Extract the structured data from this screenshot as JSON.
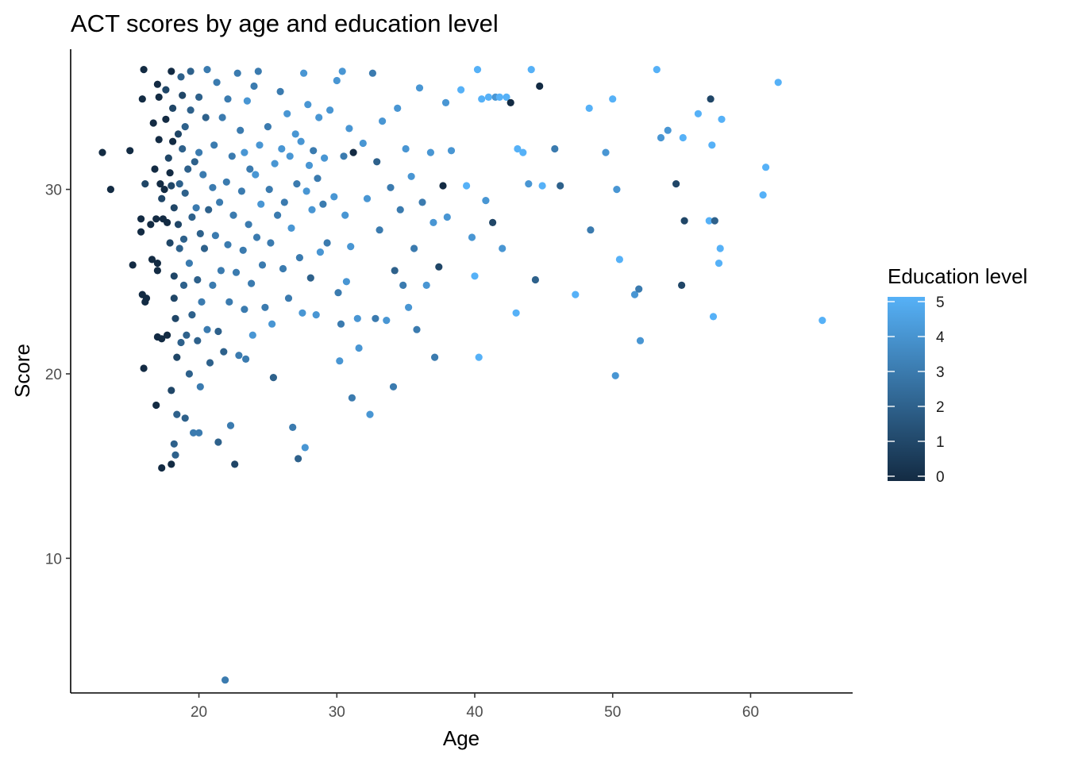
{
  "chart_data": {
    "type": "scatter",
    "title": "ACT scores by age and education level",
    "xlabel": "Age",
    "ylabel": "Score",
    "xlim": [
      10.7,
      67.4
    ],
    "ylim": [
      2.7,
      37.6
    ],
    "x_ticks": [
      20,
      30,
      40,
      50,
      60
    ],
    "y_ticks": [
      10,
      20,
      30
    ],
    "grid": false,
    "legend": {
      "title": "Education level",
      "position": "right",
      "type": "colorbar",
      "ticks": [
        0,
        1,
        2,
        3,
        4,
        5
      ],
      "low_color": "#132B43",
      "high_color": "#56B1F7"
    },
    "points": [
      [
        13.0,
        32.0,
        0
      ],
      [
        13.6,
        30.0,
        0
      ],
      [
        15.0,
        32.1,
        0
      ],
      [
        15.2,
        25.9,
        0
      ],
      [
        15.8,
        28.4,
        0
      ],
      [
        15.8,
        27.7,
        0
      ],
      [
        15.9,
        24.3,
        0
      ],
      [
        16.0,
        36.5,
        0
      ],
      [
        15.9,
        34.9,
        0
      ],
      [
        16.1,
        30.3,
        1
      ],
      [
        16.0,
        20.3,
        0
      ],
      [
        16.1,
        23.9,
        0
      ],
      [
        16.2,
        24.1,
        0
      ],
      [
        16.5,
        28.1,
        0
      ],
      [
        16.6,
        26.2,
        0
      ],
      [
        16.7,
        33.6,
        0
      ],
      [
        16.8,
        31.1,
        0
      ],
      [
        16.9,
        28.4,
        0
      ],
      [
        16.9,
        18.3,
        0
      ],
      [
        17.0,
        22.0,
        0
      ],
      [
        17.0,
        25.6,
        0
      ],
      [
        17.0,
        26.0,
        0
      ],
      [
        17.0,
        35.7,
        0
      ],
      [
        17.1,
        35.0,
        0
      ],
      [
        17.1,
        32.7,
        0
      ],
      [
        17.2,
        30.3,
        0
      ],
      [
        17.3,
        29.5,
        1
      ],
      [
        17.3,
        21.9,
        0
      ],
      [
        17.3,
        14.9,
        0
      ],
      [
        17.4,
        28.4,
        0
      ],
      [
        17.5,
        30.0,
        0
      ],
      [
        17.6,
        33.8,
        0
      ],
      [
        17.6,
        35.4,
        1
      ],
      [
        17.7,
        28.2,
        0
      ],
      [
        17.7,
        22.1,
        0
      ],
      [
        17.8,
        31.7,
        1
      ],
      [
        17.9,
        27.1,
        1
      ],
      [
        17.9,
        30.9,
        0
      ],
      [
        18.0,
        30.2,
        1
      ],
      [
        18.0,
        19.1,
        1
      ],
      [
        18.0,
        15.1,
        0
      ],
      [
        18.0,
        36.4,
        0
      ],
      [
        18.1,
        34.4,
        1
      ],
      [
        18.1,
        32.6,
        0
      ],
      [
        18.2,
        29.0,
        1
      ],
      [
        18.2,
        25.3,
        1
      ],
      [
        18.2,
        24.1,
        1
      ],
      [
        18.3,
        23.0,
        1
      ],
      [
        18.2,
        16.2,
        2
      ],
      [
        18.3,
        15.6,
        2
      ],
      [
        18.4,
        17.8,
        2
      ],
      [
        18.4,
        20.9,
        1
      ],
      [
        18.5,
        33.0,
        1
      ],
      [
        18.5,
        28.1,
        1
      ],
      [
        18.6,
        30.3,
        2
      ],
      [
        18.6,
        26.8,
        2
      ],
      [
        18.7,
        36.1,
        2
      ],
      [
        18.7,
        21.7,
        2
      ],
      [
        18.8,
        35.1,
        1
      ],
      [
        18.8,
        32.2,
        2
      ],
      [
        18.9,
        24.8,
        2
      ],
      [
        18.9,
        27.3,
        2
      ],
      [
        19.0,
        29.8,
        2
      ],
      [
        19.0,
        33.4,
        2
      ],
      [
        19.0,
        17.6,
        2
      ],
      [
        19.1,
        22.1,
        2
      ],
      [
        19.2,
        31.1,
        2
      ],
      [
        19.3,
        26.0,
        3
      ],
      [
        19.3,
        20.0,
        2
      ],
      [
        19.4,
        36.4,
        2
      ],
      [
        19.4,
        34.3,
        2
      ],
      [
        19.5,
        28.5,
        2
      ],
      [
        19.5,
        23.2,
        2
      ],
      [
        19.6,
        16.8,
        3
      ],
      [
        19.7,
        31.5,
        2
      ],
      [
        19.8,
        29.0,
        3
      ],
      [
        19.9,
        25.1,
        2
      ],
      [
        19.9,
        21.8,
        2
      ],
      [
        20.0,
        35.0,
        2
      ],
      [
        20.0,
        32.0,
        3
      ],
      [
        20.0,
        16.8,
        3
      ],
      [
        20.1,
        27.6,
        2
      ],
      [
        20.1,
        19.3,
        3
      ],
      [
        20.2,
        23.9,
        3
      ],
      [
        20.3,
        30.8,
        3
      ],
      [
        20.4,
        26.8,
        2
      ],
      [
        20.5,
        33.9,
        2
      ],
      [
        20.6,
        22.4,
        3
      ],
      [
        20.6,
        36.5,
        3
      ],
      [
        20.7,
        28.9,
        2
      ],
      [
        20.8,
        20.6,
        2
      ],
      [
        21.0,
        30.1,
        3
      ],
      [
        21.0,
        24.8,
        3
      ],
      [
        21.1,
        32.4,
        3
      ],
      [
        21.2,
        27.5,
        3
      ],
      [
        21.3,
        35.8,
        3
      ],
      [
        21.4,
        22.3,
        2
      ],
      [
        21.4,
        16.3,
        2
      ],
      [
        21.5,
        29.3,
        3
      ],
      [
        21.6,
        25.6,
        3
      ],
      [
        21.7,
        33.9,
        3
      ],
      [
        21.8,
        21.2,
        2
      ],
      [
        21.9,
        3.4,
        3
      ],
      [
        22.0,
        30.4,
        3
      ],
      [
        22.1,
        27.0,
        3
      ],
      [
        22.1,
        34.9,
        3
      ],
      [
        22.2,
        23.9,
        3
      ],
      [
        22.3,
        17.2,
        3
      ],
      [
        22.4,
        31.8,
        3
      ],
      [
        22.5,
        28.6,
        3
      ],
      [
        22.6,
        15.1,
        1
      ],
      [
        22.7,
        25.5,
        3
      ],
      [
        22.8,
        36.3,
        3
      ],
      [
        22.9,
        21.0,
        3
      ],
      [
        23.0,
        33.2,
        3
      ],
      [
        23.1,
        29.9,
        3
      ],
      [
        23.2,
        26.7,
        3
      ],
      [
        23.3,
        32.0,
        4
      ],
      [
        23.3,
        23.5,
        3
      ],
      [
        23.4,
        20.8,
        3
      ],
      [
        23.5,
        34.8,
        4
      ],
      [
        23.6,
        28.1,
        3
      ],
      [
        23.7,
        31.1,
        3
      ],
      [
        23.8,
        24.9,
        3
      ],
      [
        23.9,
        22.1,
        4
      ],
      [
        24.0,
        35.6,
        3
      ],
      [
        24.1,
        30.8,
        4
      ],
      [
        24.2,
        27.4,
        3
      ],
      [
        24.3,
        36.4,
        3
      ],
      [
        24.4,
        32.4,
        4
      ],
      [
        24.5,
        29.2,
        4
      ],
      [
        24.6,
        25.9,
        3
      ],
      [
        24.8,
        23.6,
        3
      ],
      [
        25.0,
        33.4,
        3
      ],
      [
        25.1,
        30.0,
        3
      ],
      [
        25.2,
        27.1,
        3
      ],
      [
        25.3,
        22.7,
        4
      ],
      [
        25.4,
        19.8,
        2
      ],
      [
        25.5,
        31.4,
        4
      ],
      [
        25.7,
        28.6,
        3
      ],
      [
        25.9,
        35.3,
        3
      ],
      [
        26.0,
        32.2,
        4
      ],
      [
        26.1,
        25.7,
        3
      ],
      [
        26.2,
        29.3,
        3
      ],
      [
        26.4,
        34.1,
        4
      ],
      [
        26.5,
        24.1,
        3
      ],
      [
        26.6,
        31.8,
        4
      ],
      [
        26.7,
        27.9,
        4
      ],
      [
        26.8,
        17.1,
        3
      ],
      [
        27.0,
        33.0,
        4
      ],
      [
        27.1,
        30.3,
        3
      ],
      [
        27.2,
        15.4,
        2
      ],
      [
        27.3,
        26.3,
        3
      ],
      [
        27.4,
        32.6,
        4
      ],
      [
        27.5,
        23.3,
        4
      ],
      [
        27.6,
        36.3,
        4
      ],
      [
        27.7,
        16.0,
        4
      ],
      [
        27.8,
        29.9,
        4
      ],
      [
        27.9,
        34.6,
        4
      ],
      [
        28.0,
        31.3,
        4
      ],
      [
        28.1,
        25.2,
        2
      ],
      [
        28.2,
        28.9,
        4
      ],
      [
        28.3,
        32.1,
        3
      ],
      [
        28.5,
        23.2,
        4
      ],
      [
        28.6,
        30.6,
        3
      ],
      [
        28.7,
        33.9,
        4
      ],
      [
        28.8,
        26.6,
        4
      ],
      [
        29.0,
        29.2,
        3
      ],
      [
        29.1,
        31.7,
        4
      ],
      [
        29.3,
        27.1,
        3
      ],
      [
        29.5,
        34.3,
        4
      ],
      [
        29.8,
        29.6,
        4
      ],
      [
        30.0,
        35.9,
        4
      ],
      [
        30.1,
        24.4,
        3
      ],
      [
        30.2,
        20.7,
        4
      ],
      [
        30.3,
        22.7,
        3
      ],
      [
        30.4,
        36.4,
        4
      ],
      [
        30.5,
        31.8,
        3
      ],
      [
        30.6,
        28.6,
        4
      ],
      [
        30.7,
        25.0,
        4
      ],
      [
        30.9,
        33.3,
        4
      ],
      [
        31.0,
        26.9,
        4
      ],
      [
        31.1,
        18.7,
        3
      ],
      [
        31.2,
        32.0,
        0
      ],
      [
        31.5,
        23.0,
        4
      ],
      [
        31.6,
        21.4,
        4
      ],
      [
        31.9,
        32.5,
        4
      ],
      [
        32.2,
        29.5,
        4
      ],
      [
        32.4,
        17.8,
        4
      ],
      [
        32.6,
        36.3,
        3
      ],
      [
        32.8,
        23.0,
        3
      ],
      [
        32.9,
        31.5,
        2
      ],
      [
        33.1,
        27.8,
        3
      ],
      [
        33.3,
        33.7,
        4
      ],
      [
        33.6,
        22.9,
        4
      ],
      [
        33.9,
        30.1,
        3
      ],
      [
        34.1,
        19.3,
        3
      ],
      [
        34.2,
        25.6,
        2
      ],
      [
        34.4,
        34.4,
        4
      ],
      [
        34.6,
        28.9,
        3
      ],
      [
        34.8,
        24.8,
        3
      ],
      [
        35.0,
        32.2,
        4
      ],
      [
        35.2,
        23.6,
        4
      ],
      [
        35.4,
        30.7,
        4
      ],
      [
        35.6,
        26.8,
        3
      ],
      [
        35.8,
        22.4,
        3
      ],
      [
        36.0,
        35.5,
        4
      ],
      [
        36.2,
        29.3,
        3
      ],
      [
        36.5,
        24.8,
        4
      ],
      [
        36.8,
        32.0,
        4
      ],
      [
        37.0,
        28.2,
        4
      ],
      [
        37.1,
        20.9,
        3
      ],
      [
        37.4,
        25.8,
        1
      ],
      [
        37.7,
        30.2,
        0
      ],
      [
        37.9,
        34.7,
        4
      ],
      [
        38.0,
        28.5,
        4
      ],
      [
        38.3,
        32.1,
        4
      ],
      [
        39.0,
        35.4,
        5
      ],
      [
        39.4,
        30.2,
        5
      ],
      [
        39.8,
        27.4,
        4
      ],
      [
        40.0,
        25.3,
        5
      ],
      [
        40.2,
        36.5,
        5
      ],
      [
        40.3,
        20.9,
        5
      ],
      [
        40.5,
        34.9,
        5
      ],
      [
        40.8,
        29.4,
        4
      ],
      [
        41.0,
        35.0,
        5
      ],
      [
        41.3,
        28.2,
        1
      ],
      [
        41.5,
        35.0,
        4
      ],
      [
        41.8,
        35.0,
        5
      ],
      [
        42.0,
        26.8,
        4
      ],
      [
        42.3,
        35.0,
        5
      ],
      [
        42.6,
        34.7,
        0
      ],
      [
        43.0,
        23.3,
        5
      ],
      [
        43.1,
        32.2,
        5
      ],
      [
        43.5,
        32.0,
        5
      ],
      [
        43.9,
        30.3,
        4
      ],
      [
        44.1,
        36.5,
        5
      ],
      [
        44.4,
        25.1,
        2
      ],
      [
        44.7,
        35.6,
        0
      ],
      [
        44.9,
        30.2,
        5
      ],
      [
        45.8,
        32.2,
        3
      ],
      [
        46.2,
        30.2,
        2
      ],
      [
        47.3,
        24.3,
        5
      ],
      [
        48.3,
        34.4,
        5
      ],
      [
        48.4,
        27.8,
        3
      ],
      [
        49.5,
        32.0,
        4
      ],
      [
        50.0,
        34.9,
        5
      ],
      [
        50.2,
        19.9,
        4
      ],
      [
        50.3,
        30.0,
        4
      ],
      [
        50.5,
        26.2,
        5
      ],
      [
        51.6,
        24.3,
        4
      ],
      [
        51.9,
        24.6,
        3
      ],
      [
        52.0,
        21.8,
        4
      ],
      [
        53.2,
        36.5,
        5
      ],
      [
        53.5,
        32.8,
        4
      ],
      [
        54.0,
        33.2,
        4
      ],
      [
        54.6,
        30.3,
        1
      ],
      [
        55.0,
        24.8,
        1
      ],
      [
        55.1,
        32.8,
        5
      ],
      [
        55.2,
        28.3,
        1
      ],
      [
        56.2,
        34.1,
        5
      ],
      [
        57.0,
        28.3,
        5
      ],
      [
        57.1,
        34.9,
        1
      ],
      [
        57.2,
        32.4,
        5
      ],
      [
        57.3,
        23.1,
        5
      ],
      [
        57.4,
        28.3,
        2
      ],
      [
        57.7,
        26.0,
        5
      ],
      [
        57.8,
        26.8,
        5
      ],
      [
        57.9,
        33.8,
        5
      ],
      [
        60.9,
        29.7,
        5
      ],
      [
        61.1,
        31.2,
        5
      ],
      [
        62.0,
        35.8,
        5
      ],
      [
        65.2,
        22.9,
        5
      ]
    ]
  }
}
